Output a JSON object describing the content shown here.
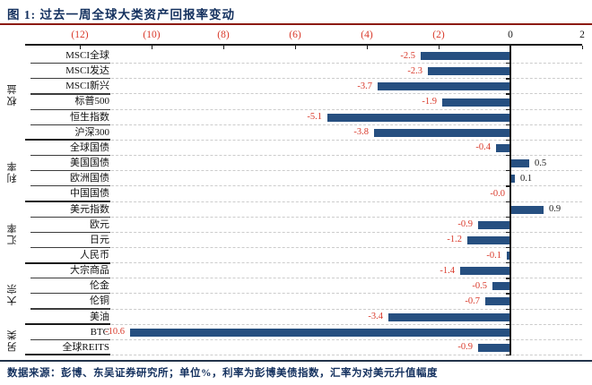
{
  "header": {
    "title": "图 1:  过去一周全球大类资产回报率变动"
  },
  "footer": {
    "source": "数据来源：彭博、东吴证券研究所；单位%，利率为彭博美债指数，汇率为对美元升值幅度"
  },
  "colors": {
    "bar": "#264f80",
    "negative_label": "#d9392a",
    "positive_label": "#1a1a1a",
    "title_text": "#13305e",
    "source_text": "#13305e",
    "top_divider": "#8c1a0e",
    "bottom_divider": "#22334a",
    "axis": "#1a1a1a",
    "grid": "#cccccc",
    "separator": "#3c3c3c",
    "group_separator": "#1a1a1a",
    "category_text": "#111111"
  },
  "chart_data": {
    "type": "bar",
    "orientation": "horizontal",
    "title": "过去一周全球大类资产回报率变动",
    "unit": "%",
    "xlim": [
      -13.5,
      2
    ],
    "xticks": [
      -12,
      -10,
      -8,
      -6,
      -4,
      -2,
      0,
      2
    ],
    "xtick_labels": [
      "(12)",
      "(10)",
      "(8)",
      "(6)",
      "(4)",
      "(2)",
      "0",
      "2"
    ],
    "grid": "dashed-horizontal",
    "legend": "none",
    "groups": [
      {
        "name": "权益",
        "items": [
          {
            "label": "MSCI全球",
            "value": -2.5,
            "value_label": "-2.5"
          },
          {
            "label": "MSCI发达",
            "value": -2.3,
            "value_label": "-2.3"
          },
          {
            "label": "MSCI新兴",
            "value": -3.7,
            "value_label": "-3.7"
          },
          {
            "label": "标普500",
            "value": -1.9,
            "value_label": "-1.9"
          },
          {
            "label": "恒生指数",
            "value": -5.1,
            "value_label": "-5.1"
          },
          {
            "label": "沪深300",
            "value": -3.8,
            "value_label": "-3.8"
          }
        ]
      },
      {
        "name": "利率",
        "items": [
          {
            "label": "全球国债",
            "value": -0.4,
            "value_label": "-0.4"
          },
          {
            "label": "美国国债",
            "value": 0.5,
            "value_label": "0.5"
          },
          {
            "label": "欧洲国债",
            "value": 0.1,
            "value_label": "0.1"
          },
          {
            "label": "中国国债",
            "value": -0.0,
            "value_label": "-0.0"
          }
        ]
      },
      {
        "name": "汇率",
        "items": [
          {
            "label": "美元指数",
            "value": 0.9,
            "value_label": "0.9"
          },
          {
            "label": "欧元",
            "value": -0.9,
            "value_label": "-0.9"
          },
          {
            "label": "日元",
            "value": -1.2,
            "value_label": "-1.2"
          },
          {
            "label": "人民币",
            "value": -0.1,
            "value_label": "-0.1"
          }
        ]
      },
      {
        "name": "大宗",
        "items": [
          {
            "label": "大宗商品",
            "value": -1.4,
            "value_label": "-1.4"
          },
          {
            "label": "伦金",
            "value": -0.5,
            "value_label": "-0.5"
          },
          {
            "label": "伦铜",
            "value": -0.7,
            "value_label": "-0.7"
          },
          {
            "label": "美油",
            "value": -3.4,
            "value_label": "-3.4"
          }
        ]
      },
      {
        "name": "另类",
        "items": [
          {
            "label": "BTC",
            "value": -10.6,
            "value_label": "-10.6"
          },
          {
            "label": "全球REITS",
            "value": -0.9,
            "value_label": "-0.9"
          }
        ]
      }
    ]
  }
}
